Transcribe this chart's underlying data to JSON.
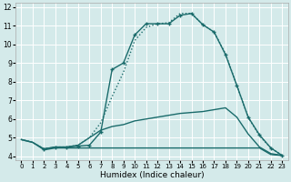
{
  "xlabel": "Humidex (Indice chaleur)",
  "xlim": [
    -0.5,
    23.5
  ],
  "ylim": [
    3.8,
    12.2
  ],
  "xticks": [
    0,
    1,
    2,
    3,
    4,
    5,
    6,
    7,
    8,
    9,
    10,
    11,
    12,
    13,
    14,
    15,
    16,
    17,
    18,
    19,
    20,
    21,
    22,
    23
  ],
  "yticks": [
    4,
    5,
    6,
    7,
    8,
    9,
    10,
    11,
    12
  ],
  "bg_color": "#d4eaea",
  "line_color": "#1a6b6b",
  "grid_color": "#ffffff",
  "curves": [
    {
      "x": [
        0,
        1,
        2,
        3,
        4,
        5,
        6,
        7,
        8,
        9,
        10,
        11,
        12,
        13,
        14,
        15,
        16,
        17,
        18,
        19,
        20,
        21,
        22,
        23
      ],
      "y": [
        4.9,
        4.75,
        4.4,
        4.5,
        4.5,
        4.6,
        5.0,
        5.8,
        7.2,
        8.5,
        10.2,
        10.9,
        11.1,
        11.15,
        11.65,
        11.65,
        11.05,
        10.65,
        9.5,
        7.8,
        6.1,
        5.1,
        4.45,
        4.05
      ],
      "marker": null,
      "linestyle": "dotted",
      "linewidth": 1.0
    },
    {
      "x": [
        2,
        3,
        4,
        5,
        6,
        7,
        8,
        9,
        10,
        11,
        12,
        13,
        14,
        15,
        16,
        17,
        18,
        19,
        20,
        21,
        22,
        23
      ],
      "y": [
        4.4,
        4.5,
        4.5,
        4.55,
        4.6,
        5.3,
        8.65,
        9.0,
        10.5,
        11.1,
        11.1,
        11.1,
        11.55,
        11.65,
        11.05,
        10.65,
        9.45,
        7.8,
        6.1,
        5.15,
        4.45,
        4.05
      ],
      "marker": "+",
      "linestyle": "solid",
      "linewidth": 1.0
    },
    {
      "x": [
        0,
        1,
        2,
        3,
        4,
        5,
        6,
        7,
        8,
        9,
        10,
        11,
        12,
        13,
        14,
        15,
        16,
        17,
        18,
        19,
        20,
        21,
        22,
        23
      ],
      "y": [
        4.9,
        4.75,
        4.4,
        4.5,
        4.5,
        4.6,
        5.0,
        5.4,
        5.6,
        5.7,
        5.9,
        6.0,
        6.1,
        6.2,
        6.3,
        6.35,
        6.4,
        6.5,
        6.6,
        6.1,
        5.2,
        4.5,
        4.15,
        4.05
      ],
      "marker": null,
      "linestyle": "solid",
      "linewidth": 1.0
    },
    {
      "x": [
        0,
        1,
        2,
        3,
        4,
        5,
        6,
        7,
        8,
        9,
        10,
        11,
        12,
        13,
        14,
        15,
        16,
        17,
        18,
        19,
        20,
        21,
        22,
        23
      ],
      "y": [
        4.9,
        4.75,
        4.35,
        4.45,
        4.45,
        4.45,
        4.45,
        4.45,
        4.45,
        4.45,
        4.45,
        4.45,
        4.45,
        4.45,
        4.45,
        4.45,
        4.45,
        4.45,
        4.45,
        4.45,
        4.45,
        4.45,
        4.1,
        4.05
      ],
      "marker": null,
      "linestyle": "solid",
      "linewidth": 1.0
    }
  ],
  "xlabel_fontsize": 6.5,
  "tick_fontsize": 5.5,
  "xtick_fontsize": 5.0
}
